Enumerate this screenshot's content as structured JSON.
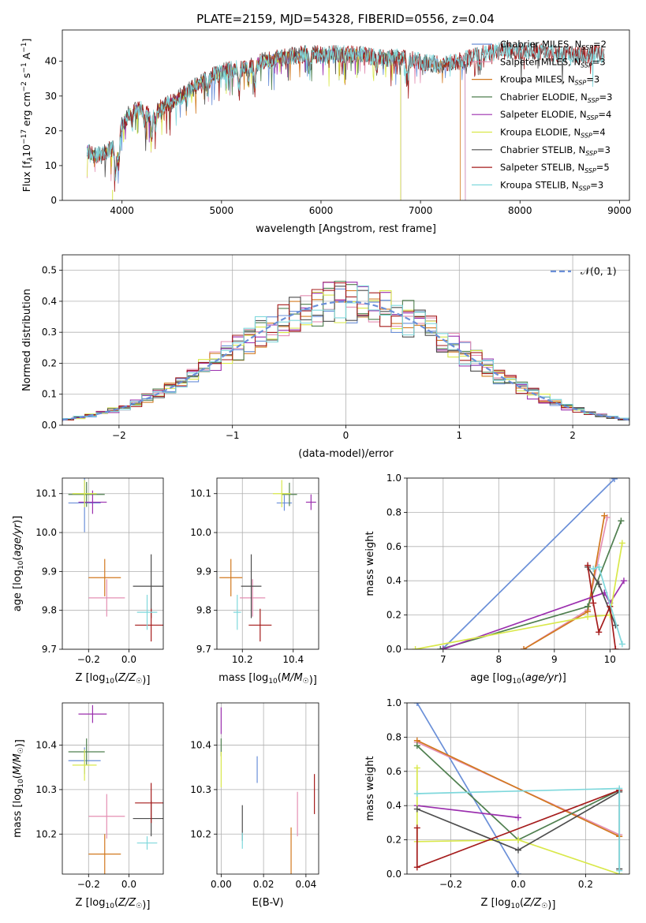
{
  "figure": {
    "title": "PLATE=2159, MJD=54328, FIBERID=0556, z=0.04"
  },
  "model_colors": {
    "Chabrier MILES": "#6a8fd8",
    "Salpeter MILES": "#e48fb3",
    "Kroupa MILES": "#d2791f",
    "Chabrier ELODIE": "#4f7f4f",
    "Salpeter ELODIE": "#9b2fae",
    "Kroupa ELODIE": "#d9e84a",
    "Chabrier STELIB": "#4d4d4d",
    "Salpeter STELIB": "#a51c1c",
    "Kroupa STELIB": "#7fd8dc"
  },
  "chart_data": [
    {
      "id": "spectrum",
      "type": "line",
      "title": "PLATE=2159, MJD=54328, FIBERID=0556, z=0.04",
      "xlabel": "wavelength [Angstrom, rest frame]",
      "ylabel_parts": [
        "Flux [f",
        "λ",
        "10",
        "−17",
        " erg cm",
        "−2",
        " s",
        "−1",
        " A",
        "−1",
        "]"
      ],
      "xlim": [
        3400,
        9100
      ],
      "ylim": [
        0,
        49
      ],
      "xticks": [
        4000,
        5000,
        6000,
        7000,
        8000,
        9000
      ],
      "yticks": [
        0,
        10,
        20,
        30,
        40
      ],
      "grid": false,
      "legend_position": "upper right",
      "legend": [
        {
          "model": "Chabrier MILES",
          "nssp": "2"
        },
        {
          "model": "Salpeter MILES",
          "nssp": "3"
        },
        {
          "model": "Kroupa MILES",
          "nssp": "3"
        },
        {
          "model": "Chabrier ELODIE",
          "nssp": "3"
        },
        {
          "model": "Salpeter ELODIE",
          "nssp": "4"
        },
        {
          "model": "Kroupa ELODIE",
          "nssp": "4"
        },
        {
          "model": "Chabrier STELIB",
          "nssp": "3"
        },
        {
          "model": "Salpeter STELIB",
          "nssp": "5"
        },
        {
          "model": "Kroupa STELIB",
          "nssp": "3"
        }
      ],
      "continuum_x": [
        3650,
        3700,
        3800,
        3900,
        3950,
        4000,
        4100,
        4200,
        4300,
        4400,
        4500,
        4600,
        4800,
        5000,
        5200,
        5400,
        5600,
        5800,
        6000,
        6200,
        6400,
        6600,
        6800,
        7000,
        7200,
        7400,
        7600,
        7800,
        8000,
        8200,
        8400,
        8600,
        8850
      ],
      "continuum_y": [
        15,
        13,
        13,
        15,
        14,
        22,
        26,
        26,
        24,
        27,
        28,
        30,
        34,
        37,
        38,
        40,
        41,
        42,
        42,
        42,
        42,
        41,
        41,
        40,
        39,
        40,
        42,
        43,
        43,
        43,
        42,
        42,
        42
      ],
      "model_ranges": {
        "Chabrier MILES": [
          3650,
          7450
        ],
        "Salpeter MILES": [
          3650,
          7450
        ],
        "Kroupa MILES": [
          3650,
          7400
        ],
        "Chabrier ELODIE": [
          3650,
          6800
        ],
        "Salpeter ELODIE": [
          3650,
          6800
        ],
        "Kroupa ELODIE": [
          3650,
          6800
        ],
        "Chabrier STELIB": [
          3650,
          8850
        ],
        "Salpeter STELIB": [
          3650,
          8850
        ],
        "Kroupa STELIB": [
          3650,
          8850
        ]
      }
    },
    {
      "id": "residuals",
      "type": "histogram",
      "xlabel": "(data-model)/error",
      "ylabel": "Normed distribution",
      "xlim": [
        -2.5,
        2.5
      ],
      "ylim": [
        0,
        0.55
      ],
      "xticks": [
        -2,
        -1,
        0,
        1,
        2
      ],
      "yticks": [
        0.0,
        0.1,
        0.2,
        0.3,
        0.4,
        0.5
      ],
      "grid": true,
      "legend_position": "upper right",
      "reference_curve": {
        "label": "𝒩(0, 1)",
        "mean": 0,
        "sigma": 1
      },
      "bin_width": 0.1
    },
    {
      "id": "z_age",
      "type": "errorbar",
      "xlabel": "Z [log10(Z/Z☉)]",
      "ylabel": "age  [log10(age/yr)]",
      "xlim": [
        -0.33,
        0.17
      ],
      "ylim": [
        9.7,
        10.14
      ],
      "xticks": [
        -0.2,
        0.0
      ],
      "yticks": [
        9.7,
        9.8,
        9.9,
        10.0,
        10.1
      ],
      "grid": true,
      "points": [
        {
          "model": "Chabrier MILES",
          "x": -0.22,
          "xerr": 0.08,
          "y": 10.076,
          "yerr": 0.075
        },
        {
          "model": "Salpeter MILES",
          "x": -0.11,
          "xerr": 0.09,
          "y": 9.832,
          "yerr": 0.048
        },
        {
          "model": "Kroupa MILES",
          "x": -0.12,
          "xerr": 0.08,
          "y": 9.884,
          "yerr": 0.048
        },
        {
          "model": "Chabrier ELODIE",
          "x": -0.21,
          "xerr": 0.09,
          "y": 10.098,
          "yerr": 0.032
        },
        {
          "model": "Salpeter ELODIE",
          "x": -0.18,
          "xerr": 0.07,
          "y": 10.078,
          "yerr": 0.03
        },
        {
          "model": "Kroupa ELODIE",
          "x": -0.22,
          "xerr": 0.06,
          "y": 10.1,
          "yerr": 0.035
        },
        {
          "model": "Chabrier STELIB",
          "x": 0.11,
          "xerr": 0.09,
          "y": 9.862,
          "yerr": 0.082
        },
        {
          "model": "Salpeter STELIB",
          "x": 0.11,
          "xerr": 0.08,
          "y": 9.762,
          "yerr": 0.042
        },
        {
          "model": "Kroupa STELIB",
          "x": 0.09,
          "xerr": 0.05,
          "y": 9.795,
          "yerr": 0.045
        }
      ]
    },
    {
      "id": "mass_age",
      "type": "errorbar",
      "xlabel": "mass [log10(M/M☉)]",
      "ylabel": "",
      "xlim": [
        10.1,
        10.5
      ],
      "ylim": [
        9.7,
        10.14
      ],
      "xticks": [
        10.2,
        10.4
      ],
      "yticks": [
        9.7,
        9.8,
        9.9,
        10.0,
        10.1
      ],
      "grid": true,
      "points": [
        {
          "model": "Chabrier MILES",
          "x": 10.365,
          "xerr": 0.03,
          "y": 10.076,
          "yerr": 0.02
        },
        {
          "model": "Salpeter MILES",
          "x": 10.24,
          "xerr": 0.05,
          "y": 9.832,
          "yerr": 0.048
        },
        {
          "model": "Kroupa MILES",
          "x": 10.155,
          "xerr": 0.045,
          "y": 9.884,
          "yerr": 0.048
        },
        {
          "model": "Chabrier ELODIE",
          "x": 10.385,
          "xerr": 0.03,
          "y": 10.098,
          "yerr": 0.03
        },
        {
          "model": "Salpeter ELODIE",
          "x": 10.47,
          "xerr": 0.02,
          "y": 10.078,
          "yerr": 0.02
        },
        {
          "model": "Kroupa ELODIE",
          "x": 10.355,
          "xerr": 0.035,
          "y": 10.1,
          "yerr": 0.035
        },
        {
          "model": "Chabrier STELIB",
          "x": 10.235,
          "xerr": 0.04,
          "y": 9.862,
          "yerr": 0.082
        },
        {
          "model": "Salpeter STELIB",
          "x": 10.27,
          "xerr": 0.045,
          "y": 9.762,
          "yerr": 0.042
        },
        {
          "model": "Kroupa STELIB",
          "x": 10.18,
          "xerr": 0.015,
          "y": 9.795,
          "yerr": 0.045
        }
      ]
    },
    {
      "id": "age_weight",
      "type": "line",
      "xlabel": "age  [log10(age/yr)]",
      "ylabel": "mass weight",
      "xlim": [
        6.35,
        10.35
      ],
      "ylim": [
        0.0,
        1.0
      ],
      "xticks": [
        7,
        8,
        9,
        10
      ],
      "yticks": [
        0.0,
        0.2,
        0.4,
        0.6,
        0.8,
        1.0
      ],
      "grid": true,
      "series": [
        {
          "model": "Chabrier MILES",
          "x": [
            7.0,
            10.08
          ],
          "y": [
            0.005,
            0.995
          ]
        },
        {
          "model": "Salpeter MILES",
          "x": [
            8.45,
            9.6,
            9.95
          ],
          "y": [
            0.0,
            0.23,
            0.77
          ]
        },
        {
          "model": "Kroupa MILES",
          "x": [
            8.45,
            9.6,
            9.9
          ],
          "y": [
            0.0,
            0.22,
            0.78
          ]
        },
        {
          "model": "Chabrier ELODIE",
          "x": [
            6.95,
            9.6,
            10.2
          ],
          "y": [
            0.0,
            0.25,
            0.75
          ]
        },
        {
          "model": "Salpeter ELODIE",
          "x": [
            7.0,
            9.9,
            10.0,
            10.25
          ],
          "y": [
            0.0,
            0.33,
            0.27,
            0.4
          ]
        },
        {
          "model": "Kroupa ELODIE",
          "x": [
            6.5,
            9.6,
            10.0,
            10.22
          ],
          "y": [
            0.0,
            0.19,
            0.2,
            0.62
          ]
        },
        {
          "model": "Chabrier STELIB",
          "x": [
            9.6,
            9.8,
            10.1
          ],
          "y": [
            0.48,
            0.38,
            0.14
          ]
        },
        {
          "model": "Salpeter STELIB",
          "x": [
            9.6,
            9.7,
            9.8,
            10.0,
            10.1
          ],
          "y": [
            0.49,
            0.27,
            0.1,
            0.25,
            0.0
          ]
        },
        {
          "model": "Kroupa STELIB",
          "x": [
            9.7,
            9.8,
            10.22
          ],
          "y": [
            0.47,
            0.48,
            0.03
          ]
        }
      ]
    },
    {
      "id": "z_mass",
      "type": "errorbar",
      "xlabel": "Z [log10(Z/Z☉)]",
      "ylabel": "mass [log10(M/M☉)]",
      "xlim": [
        -0.33,
        0.17
      ],
      "ylim": [
        10.11,
        10.495
      ],
      "xticks": [
        -0.2,
        0.0
      ],
      "yticks": [
        10.2,
        10.3,
        10.4
      ],
      "grid": true,
      "points": [
        {
          "model": "Chabrier MILES",
          "x": -0.22,
          "xerr": 0.08,
          "y": 10.365,
          "yerr": 0.03
        },
        {
          "model": "Salpeter MILES",
          "x": -0.11,
          "xerr": 0.09,
          "y": 10.24,
          "yerr": 0.05
        },
        {
          "model": "Kroupa MILES",
          "x": -0.12,
          "xerr": 0.08,
          "y": 10.155,
          "yerr": 0.045
        },
        {
          "model": "Chabrier ELODIE",
          "x": -0.21,
          "xerr": 0.09,
          "y": 10.385,
          "yerr": 0.03
        },
        {
          "model": "Salpeter ELODIE",
          "x": -0.18,
          "xerr": 0.07,
          "y": 10.47,
          "yerr": 0.02
        },
        {
          "model": "Kroupa ELODIE",
          "x": -0.22,
          "xerr": 0.06,
          "y": 10.355,
          "yerr": 0.035
        },
        {
          "model": "Chabrier STELIB",
          "x": 0.11,
          "xerr": 0.09,
          "y": 10.235,
          "yerr": 0.04
        },
        {
          "model": "Salpeter STELIB",
          "x": 0.11,
          "xerr": 0.08,
          "y": 10.27,
          "yerr": 0.045
        },
        {
          "model": "Kroupa STELIB",
          "x": 0.09,
          "xerr": 0.05,
          "y": 10.18,
          "yerr": 0.015
        }
      ]
    },
    {
      "id": "ebv_mass",
      "type": "errorbar",
      "xlabel": "E(B-V)",
      "ylabel": "",
      "xlim": [
        -0.002,
        0.046
      ],
      "ylim": [
        10.11,
        10.495
      ],
      "xticks": [
        0.0,
        0.02,
        0.04
      ],
      "yticks": [
        10.2,
        10.3,
        10.4
      ],
      "grid": true,
      "points": [
        {
          "model": "Chabrier MILES",
          "x": 0.017,
          "xerr": 0,
          "y": 10.345,
          "yerr": 0.03
        },
        {
          "model": "Salpeter MILES",
          "x": 0.036,
          "xerr": 0,
          "y": 10.245,
          "yerr": 0.05
        },
        {
          "model": "Kroupa MILES",
          "x": 0.033,
          "xerr": 0,
          "y": 10.155,
          "yerr": 0.06
        },
        {
          "model": "Chabrier ELODIE",
          "x": 0.0,
          "xerr": 0,
          "y": 10.395,
          "yerr": 0.02
        },
        {
          "model": "Salpeter ELODIE",
          "x": 0.0,
          "xerr": 0,
          "y": 10.455,
          "yerr": 0.03
        },
        {
          "model": "Kroupa ELODIE",
          "x": 0.0,
          "xerr": 0,
          "y": 10.345,
          "yerr": 0.04
        },
        {
          "model": "Chabrier STELIB",
          "x": 0.01,
          "xerr": 0,
          "y": 10.225,
          "yerr": 0.04
        },
        {
          "model": "Salpeter STELIB",
          "x": 0.044,
          "xerr": 0,
          "y": 10.29,
          "yerr": 0.045
        },
        {
          "model": "Kroupa STELIB",
          "x": 0.01,
          "xerr": 0,
          "y": 10.185,
          "yerr": 0.018
        }
      ]
    },
    {
      "id": "z_weight",
      "type": "line",
      "xlabel": "Z [log10(Z/Z☉)]",
      "ylabel": "mass weight",
      "xlim": [
        -0.33,
        0.33
      ],
      "ylim": [
        0.0,
        1.0
      ],
      "xticks": [
        -0.2,
        0.0,
        0.2
      ],
      "yticks": [
        0.0,
        0.2,
        0.4,
        0.6,
        0.8,
        1.0
      ],
      "grid": true,
      "series": [
        {
          "model": "Chabrier MILES",
          "x": [
            -0.3,
            0.0
          ],
          "y": [
            1.0,
            0.0
          ]
        },
        {
          "model": "Salpeter MILES",
          "x": [
            -0.3,
            0.3
          ],
          "y": [
            0.77,
            0.23
          ]
        },
        {
          "model": "Kroupa MILES",
          "x": [
            -0.3,
            0.3
          ],
          "y": [
            0.78,
            0.22
          ]
        },
        {
          "model": "Chabrier ELODIE",
          "x": [
            -0.3,
            0.0,
            0.3
          ],
          "y": [
            0.75,
            0.2,
            0.49
          ]
        },
        {
          "model": "Salpeter ELODIE",
          "x": [
            -0.3,
            0.0
          ],
          "y": [
            0.4,
            0.33
          ]
        },
        {
          "model": "Kroupa ELODIE",
          "x": [
            -0.3,
            -0.3,
            0.0,
            0.3
          ],
          "y": [
            0.62,
            0.19,
            0.2,
            0.0
          ]
        },
        {
          "model": "Chabrier STELIB",
          "x": [
            -0.3,
            0.0,
            0.3,
            0.3
          ],
          "y": [
            0.38,
            0.14,
            0.48,
            0.03
          ]
        },
        {
          "model": "Salpeter STELIB",
          "x": [
            -0.3,
            -0.3,
            0.3
          ],
          "y": [
            0.27,
            0.04,
            0.49
          ]
        },
        {
          "model": "Kroupa STELIB",
          "x": [
            -0.3,
            0.3,
            0.3
          ],
          "y": [
            0.47,
            0.5,
            0.02
          ]
        }
      ]
    }
  ]
}
